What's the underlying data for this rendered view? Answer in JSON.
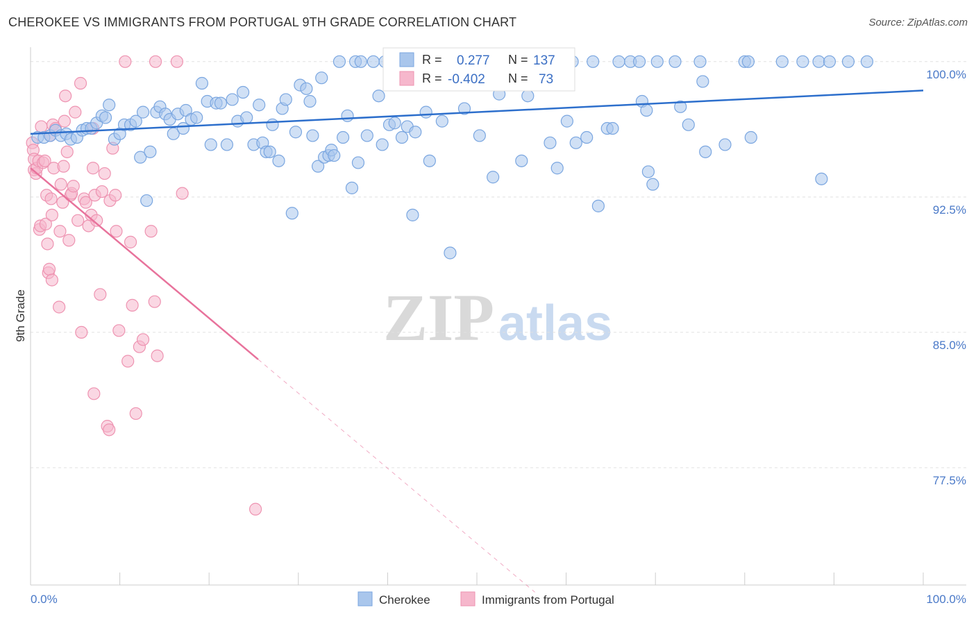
{
  "title": "CHEROKEE VS IMMIGRANTS FROM PORTUGAL 9TH GRADE CORRELATION CHART",
  "source": "Source: ZipAtlas.com",
  "watermark": {
    "zip": "ZIP",
    "atlas": "atlas"
  },
  "colors": {
    "blue_fill": "#a9c6ec",
    "blue_stroke": "#7aa6e0",
    "blue_line": "#2d6fcc",
    "pink_fill": "#f6b7cc",
    "pink_stroke": "#ee93b1",
    "pink_line": "#e8739c",
    "grid": "#e0e0e0",
    "tick_text": "#4a79c8"
  },
  "stats": {
    "blue": {
      "r_label": "R =",
      "r_value": "0.277",
      "n_label": "N =",
      "n_value": "137"
    },
    "pink": {
      "r_label": "R =",
      "r_value": "-0.402",
      "n_label": "N =",
      "n_value": "73"
    }
  },
  "legend": {
    "series1": "Cherokee",
    "series2": "Immigrants from Portugal"
  },
  "chart_data": {
    "type": "scatter",
    "xlabel": "",
    "ylabel": "9th Grade",
    "xlim": [
      0,
      100
    ],
    "ylim": [
      71.0,
      100.8
    ],
    "x_tick_labels": [
      "0.0%",
      "100.0%"
    ],
    "y_ticks": [
      100.0,
      92.5,
      85.0,
      77.5
    ],
    "y_tick_labels": [
      "100.0%",
      "92.5%",
      "85.0%",
      "77.5%"
    ],
    "grid": true,
    "legend_position": "bottom-center",
    "series": [
      {
        "name": "Cherokee",
        "trend": {
          "x": [
            0,
            100
          ],
          "y": [
            96.0,
            98.4
          ]
        },
        "points": [
          [
            0.8,
            95.8
          ],
          [
            1.5,
            95.8
          ],
          [
            2.2,
            95.9
          ],
          [
            2.8,
            96.2
          ],
          [
            3.4,
            95.9
          ],
          [
            4.0,
            96.0
          ],
          [
            4.5,
            95.7
          ],
          [
            5.2,
            95.8
          ],
          [
            5.8,
            96.2
          ],
          [
            6.3,
            96.3
          ],
          [
            6.8,
            96.3
          ],
          [
            7.4,
            96.6
          ],
          [
            8.0,
            97.0
          ],
          [
            8.4,
            96.9
          ],
          [
            8.8,
            97.6
          ],
          [
            9.4,
            95.7
          ],
          [
            10.0,
            96.0
          ],
          [
            10.5,
            96.5
          ],
          [
            11.2,
            96.5
          ],
          [
            11.8,
            96.7
          ],
          [
            12.3,
            94.7
          ],
          [
            12.6,
            97.2
          ],
          [
            13.0,
            92.3
          ],
          [
            13.4,
            95.0
          ],
          [
            14.1,
            97.2
          ],
          [
            14.5,
            97.5
          ],
          [
            15.1,
            97.1
          ],
          [
            15.6,
            96.8
          ],
          [
            16.0,
            96.0
          ],
          [
            16.5,
            97.1
          ],
          [
            17.1,
            96.3
          ],
          [
            17.4,
            97.3
          ],
          [
            18.0,
            96.8
          ],
          [
            18.6,
            96.9
          ],
          [
            19.2,
            98.8
          ],
          [
            19.8,
            97.8
          ],
          [
            20.2,
            95.4
          ],
          [
            20.8,
            97.7
          ],
          [
            21.3,
            97.7
          ],
          [
            22.0,
            95.4
          ],
          [
            22.6,
            97.9
          ],
          [
            23.2,
            96.7
          ],
          [
            23.8,
            98.3
          ],
          [
            24.2,
            96.9
          ],
          [
            25.0,
            95.4
          ],
          [
            25.6,
            97.6
          ],
          [
            26.0,
            95.5
          ],
          [
            26.4,
            95.0
          ],
          [
            26.8,
            95.0
          ],
          [
            27.1,
            96.5
          ],
          [
            27.8,
            94.5
          ],
          [
            28.2,
            97.4
          ],
          [
            28.6,
            97.9
          ],
          [
            29.3,
            91.6
          ],
          [
            29.7,
            96.1
          ],
          [
            30.2,
            98.7
          ],
          [
            30.9,
            98.5
          ],
          [
            31.3,
            97.8
          ],
          [
            31.6,
            95.9
          ],
          [
            32.2,
            94.2
          ],
          [
            32.6,
            99.1
          ],
          [
            32.9,
            94.7
          ],
          [
            33.4,
            94.8
          ],
          [
            33.7,
            95.1
          ],
          [
            34.0,
            94.8
          ],
          [
            34.6,
            100.0
          ],
          [
            35.0,
            95.8
          ],
          [
            35.5,
            97.0
          ],
          [
            36.0,
            93.0
          ],
          [
            36.4,
            100.0
          ],
          [
            36.7,
            94.4
          ],
          [
            37.0,
            100.0
          ],
          [
            37.7,
            95.9
          ],
          [
            38.4,
            100.0
          ],
          [
            39.0,
            98.1
          ],
          [
            39.4,
            95.4
          ],
          [
            39.7,
            100.0
          ],
          [
            40.2,
            96.5
          ],
          [
            40.8,
            96.6
          ],
          [
            41.1,
            100.0
          ],
          [
            41.6,
            95.8
          ],
          [
            42.2,
            96.4
          ],
          [
            42.8,
            91.5
          ],
          [
            43.1,
            96.1
          ],
          [
            44.0,
            100.0
          ],
          [
            44.3,
            97.2
          ],
          [
            44.7,
            94.5
          ],
          [
            45.7,
            100.0
          ],
          [
            46.1,
            96.7
          ],
          [
            47.0,
            89.4
          ],
          [
            47.7,
            100.0
          ],
          [
            48.6,
            97.4
          ],
          [
            49.2,
            100.0
          ],
          [
            50.3,
            95.9
          ],
          [
            51.1,
            100.0
          ],
          [
            51.8,
            93.6
          ],
          [
            52.5,
            98.2
          ],
          [
            53.0,
            100.0
          ],
          [
            54.2,
            100.0
          ],
          [
            55.0,
            94.5
          ],
          [
            55.7,
            98.1
          ],
          [
            56.2,
            100.0
          ],
          [
            57.2,
            100.0
          ],
          [
            58.2,
            95.5
          ],
          [
            59.0,
            94.1
          ],
          [
            60.1,
            96.7
          ],
          [
            60.7,
            100.0
          ],
          [
            61.1,
            95.5
          ],
          [
            62.3,
            95.8
          ],
          [
            63.0,
            100.0
          ],
          [
            63.6,
            92.0
          ],
          [
            64.6,
            96.3
          ],
          [
            65.2,
            96.3
          ],
          [
            65.9,
            100.0
          ],
          [
            67.2,
            100.0
          ],
          [
            68.2,
            100.0
          ],
          [
            68.5,
            97.8
          ],
          [
            69.0,
            97.3
          ],
          [
            69.2,
            93.9
          ],
          [
            69.7,
            93.2
          ],
          [
            70.2,
            100.0
          ],
          [
            72.2,
            100.0
          ],
          [
            72.8,
            97.5
          ],
          [
            75.0,
            100.0
          ],
          [
            75.3,
            98.9
          ],
          [
            75.6,
            95.0
          ],
          [
            77.8,
            95.4
          ],
          [
            80.0,
            100.0
          ],
          [
            80.4,
            100.0
          ],
          [
            80.7,
            95.8
          ],
          [
            84.2,
            100.0
          ],
          [
            86.5,
            100.0
          ],
          [
            88.3,
            100.0
          ],
          [
            88.6,
            93.5
          ],
          [
            89.5,
            100.0
          ],
          [
            91.6,
            100.0
          ],
          [
            93.7,
            100.0
          ],
          [
            73.7,
            96.5
          ]
        ]
      },
      {
        "name": "Immigrants from Portugal",
        "trend": {
          "x": [
            0,
            25.5
          ],
          "y": [
            94.1,
            83.5
          ]
        },
        "trend_extension": {
          "x": [
            25.5,
            56.5
          ],
          "y": [
            83.5,
            70.6
          ]
        },
        "points": [
          [
            0.2,
            95.5
          ],
          [
            0.3,
            95.1
          ],
          [
            0.4,
            94.6
          ],
          [
            0.4,
            94.0
          ],
          [
            0.6,
            93.8
          ],
          [
            0.7,
            94.1
          ],
          [
            0.9,
            94.5
          ],
          [
            1.0,
            90.7
          ],
          [
            1.1,
            90.9
          ],
          [
            1.2,
            96.4
          ],
          [
            1.4,
            94.4
          ],
          [
            1.6,
            94.5
          ],
          [
            1.7,
            91.0
          ],
          [
            1.8,
            92.6
          ],
          [
            1.9,
            89.9
          ],
          [
            2.0,
            88.3
          ],
          [
            2.1,
            88.5
          ],
          [
            2.2,
            95.9
          ],
          [
            2.3,
            92.4
          ],
          [
            2.4,
            91.5
          ],
          [
            2.5,
            96.5
          ],
          [
            2.6,
            94.1
          ],
          [
            2.8,
            96.3
          ],
          [
            3.2,
            86.4
          ],
          [
            3.3,
            90.6
          ],
          [
            3.4,
            93.2
          ],
          [
            3.6,
            92.2
          ],
          [
            3.7,
            94.2
          ],
          [
            3.8,
            96.7
          ],
          [
            3.9,
            98.1
          ],
          [
            4.1,
            95.0
          ],
          [
            4.3,
            90.1
          ],
          [
            4.5,
            92.6
          ],
          [
            4.6,
            92.7
          ],
          [
            4.8,
            93.1
          ],
          [
            5.0,
            97.2
          ],
          [
            5.3,
            91.2
          ],
          [
            5.6,
            98.8
          ],
          [
            5.7,
            85.0
          ],
          [
            6.0,
            92.4
          ],
          [
            6.2,
            92.2
          ],
          [
            6.5,
            90.9
          ],
          [
            6.8,
            91.5
          ],
          [
            7.0,
            96.3
          ],
          [
            7.0,
            94.1
          ],
          [
            7.1,
            81.6
          ],
          [
            7.2,
            92.6
          ],
          [
            7.4,
            91.2
          ],
          [
            7.8,
            87.1
          ],
          [
            8.0,
            92.8
          ],
          [
            8.3,
            93.8
          ],
          [
            8.6,
            79.8
          ],
          [
            8.8,
            79.6
          ],
          [
            8.9,
            92.3
          ],
          [
            9.2,
            95.2
          ],
          [
            9.5,
            92.6
          ],
          [
            9.6,
            90.6
          ],
          [
            9.9,
            85.1
          ],
          [
            10.9,
            83.4
          ],
          [
            11.2,
            90.0
          ],
          [
            11.4,
            86.5
          ],
          [
            11.8,
            80.5
          ],
          [
            12.2,
            84.2
          ],
          [
            12.6,
            84.6
          ],
          [
            13.5,
            90.6
          ],
          [
            13.9,
            86.7
          ],
          [
            14.2,
            83.7
          ],
          [
            10.6,
            100.0
          ],
          [
            14.0,
            100.0
          ],
          [
            16.4,
            100.0
          ],
          [
            17.0,
            92.7
          ],
          [
            25.2,
            75.2
          ],
          [
            2.4,
            87.9
          ]
        ]
      }
    ]
  }
}
